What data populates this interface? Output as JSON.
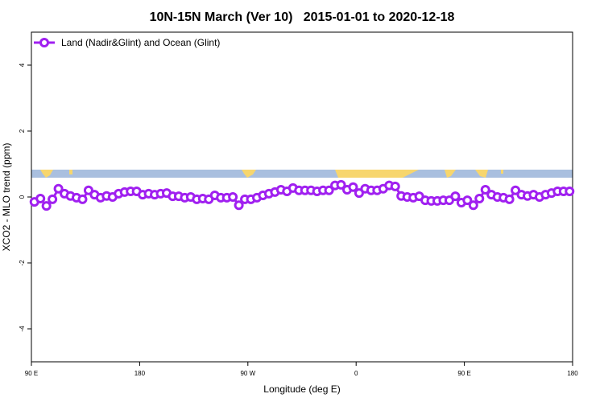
{
  "chart_data": {
    "type": "line",
    "title": "10N-15N March (Ver 10)   2015-01-01 to 2020-12-18",
    "xlabel": "Longitude (deg E)",
    "ylabel": "XCO2 - MLO trend (ppm)",
    "x": [
      92.5,
      97.5,
      102.5,
      107.5,
      112.5,
      117.5,
      122.5,
      127.5,
      132.5,
      137.5,
      142.5,
      147.5,
      152.5,
      157.5,
      162.5,
      167.5,
      172.5,
      177.5,
      182.5,
      187.5,
      192.5,
      197.5,
      202.5,
      207.5,
      212.5,
      217.5,
      222.5,
      227.5,
      232.5,
      237.5,
      242.5,
      247.5,
      252.5,
      257.5,
      262.5,
      267.5,
      272.5,
      277.5,
      282.5,
      287.5,
      292.5,
      297.5,
      302.5,
      307.5,
      312.5,
      317.5,
      322.5,
      327.5,
      332.5,
      337.5,
      342.5,
      347.5,
      352.5,
      357.5,
      362.5,
      367.5,
      372.5,
      377.5,
      382.5,
      387.5,
      392.5,
      397.5,
      402.5,
      407.5,
      412.5,
      417.5,
      422.5,
      427.5,
      432.5,
      437.5,
      442.5,
      447.5,
      452.5,
      457.5,
      462.5,
      467.5,
      472.5,
      477.5,
      482.5,
      487.5,
      492.5,
      497.5,
      502.5,
      507.5,
      512.5,
      517.5,
      522.5,
      527.5,
      532.5,
      537.5
    ],
    "series": [
      {
        "name": "Land (Nadir&Glint) and Ocean (Glint)",
        "color": "#a020f0",
        "values": [
          -0.15,
          -0.05,
          -0.27,
          -0.07,
          0.25,
          0.1,
          0.03,
          -0.02,
          -0.07,
          0.2,
          0.07,
          -0.02,
          0.03,
          0,
          0.1,
          0.15,
          0.17,
          0.17,
          0.07,
          0.1,
          0.07,
          0.1,
          0.12,
          0.02,
          0.02,
          -0.02,
          0,
          -0.07,
          -0.05,
          -0.07,
          0.05,
          -0.02,
          -0.02,
          0,
          -0.25,
          -0.07,
          -0.07,
          -0.02,
          0.05,
          0.1,
          0.15,
          0.22,
          0.17,
          0.27,
          0.2,
          0.2,
          0.2,
          0.17,
          0.2,
          0.2,
          0.35,
          0.37,
          0.22,
          0.3,
          0.12,
          0.25,
          0.2,
          0.2,
          0.25,
          0.35,
          0.32,
          0.03,
          0,
          -0.02,
          0.02,
          -0.1,
          -0.12,
          -0.12,
          -0.1,
          -0.1,
          0.02,
          -0.17,
          -0.1,
          -0.25,
          -0.05,
          0.22,
          0.07,
          0,
          -0.02,
          -0.07,
          0.2,
          0.07,
          0.03,
          0.07,
          0,
          0.07,
          0.12,
          0.17,
          0.17,
          0.17
        ]
      }
    ],
    "xlim": [
      90,
      540
    ],
    "xticks": [
      {
        "value": 90,
        "label": "90 E"
      },
      180,
      {
        "value": 270,
        "label": "90 W"
      },
      {
        "value": 360,
        "label": "0"
      },
      {
        "value": 450,
        "label": "90 E"
      },
      {
        "value": 540,
        "label": "180"
      }
    ],
    "ylim": [
      -5,
      5
    ],
    "yticks": [
      -4,
      -2,
      0,
      2,
      4
    ],
    "legend": "topleft"
  }
}
